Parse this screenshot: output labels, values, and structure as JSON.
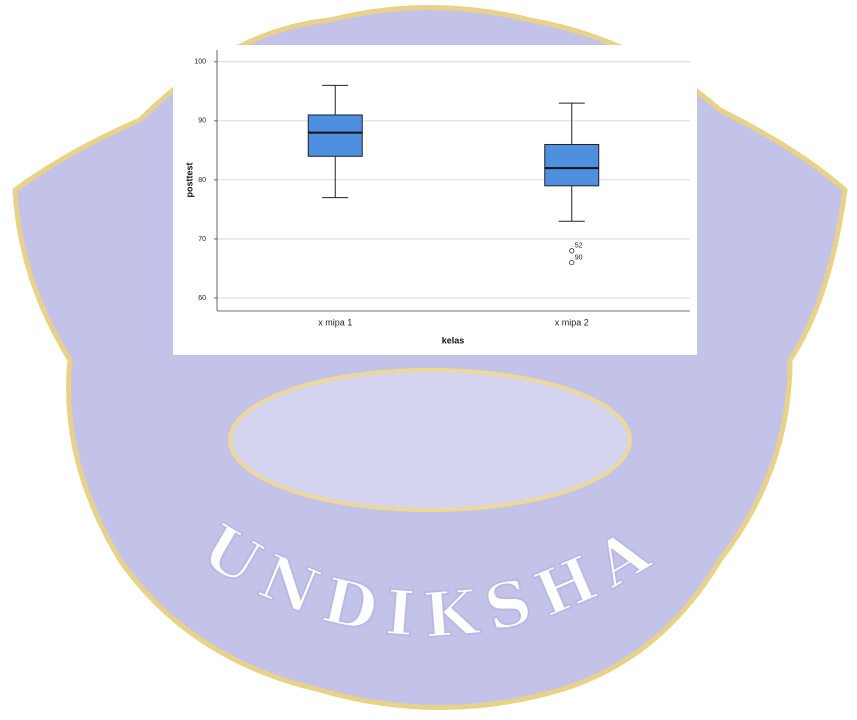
{
  "watermark": {
    "text": "UNDIKSHA"
  },
  "chart_data": {
    "type": "box",
    "x_label": "kelas",
    "y_label": "posttest",
    "categories": [
      "x mipa 1",
      "x mipa 2"
    ],
    "min": [
      77,
      73
    ],
    "q1": [
      84,
      79
    ],
    "median": [
      88,
      82
    ],
    "q3": [
      91,
      86
    ],
    "max": [
      96,
      93
    ],
    "outliers": [
      [],
      [
        {
          "value": 68,
          "case": "52"
        },
        {
          "value": 66,
          "case": "90"
        }
      ]
    ],
    "color": "#4f8fdf",
    "ylim": [
      57.8,
      102
    ],
    "yticks": [
      60,
      70,
      80,
      90,
      100
    ],
    "grid": true
  }
}
